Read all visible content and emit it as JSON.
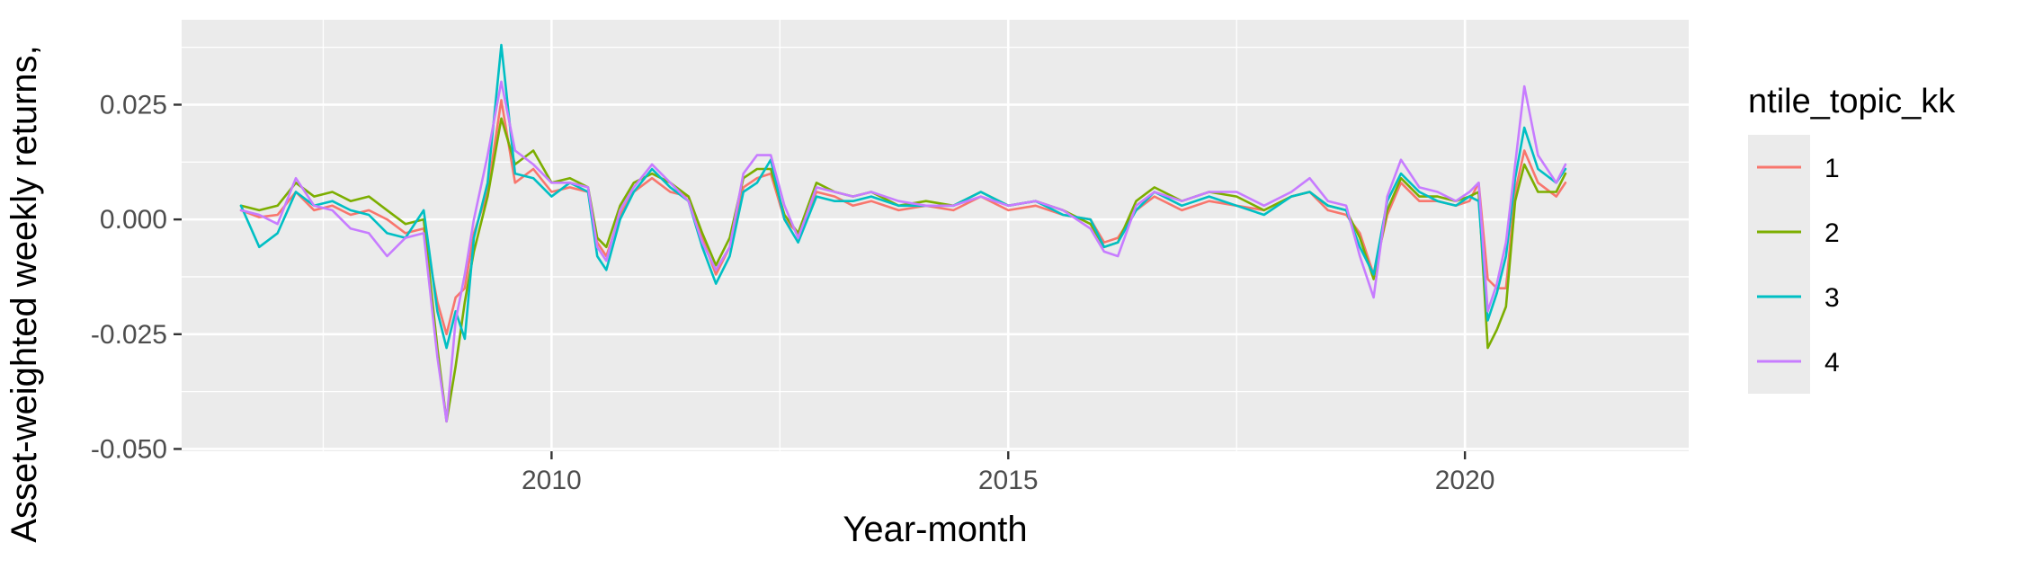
{
  "chart_data": {
    "type": "line",
    "title": "",
    "xlabel": "Year-month",
    "ylabel": "Asset-weighted weekly returns,",
    "xlim": [
      2005.95,
      2022.45
    ],
    "ylim": [
      -0.0505,
      0.0435
    ],
    "x_ticks": [
      2010,
      2015,
      2020
    ],
    "x_tick_labels": [
      "2010",
      "2015",
      "2020"
    ],
    "y_ticks": [
      -0.05,
      -0.025,
      0.0,
      0.025
    ],
    "y_tick_labels": [
      "-0.050",
      "-0.025",
      "0.000",
      "0.025"
    ],
    "grid": true,
    "legend": {
      "title": "ntile_topic_kk",
      "placement": "right"
    },
    "colors": {
      "panel": "#ebebeb",
      "grid": "#ffffff"
    },
    "x": [
      2006.6,
      2006.8,
      2007.0,
      2007.2,
      2007.4,
      2007.6,
      2007.8,
      2008.0,
      2008.2,
      2008.4,
      2008.6,
      2008.75,
      2008.85,
      2008.95,
      2009.05,
      2009.15,
      2009.3,
      2009.45,
      2009.6,
      2009.8,
      2010.0,
      2010.2,
      2010.4,
      2010.5,
      2010.6,
      2010.75,
      2010.9,
      2011.1,
      2011.3,
      2011.5,
      2011.65,
      2011.8,
      2011.95,
      2012.1,
      2012.25,
      2012.4,
      2012.55,
      2012.7,
      2012.9,
      2013.1,
      2013.3,
      2013.5,
      2013.8,
      2014.1,
      2014.4,
      2014.7,
      2015.0,
      2015.3,
      2015.6,
      2015.9,
      2016.05,
      2016.2,
      2016.4,
      2016.6,
      2016.9,
      2017.2,
      2017.5,
      2017.8,
      2018.1,
      2018.3,
      2018.5,
      2018.7,
      2018.85,
      2019.0,
      2019.15,
      2019.3,
      2019.5,
      2019.7,
      2019.9,
      2020.05,
      2020.15,
      2020.25,
      2020.35,
      2020.45,
      2020.55,
      2020.65,
      2020.8,
      2021.0,
      2021.1
    ],
    "series": [
      {
        "name": "1",
        "color": "#F8766D",
        "values": [
          0.002,
          0.0005,
          0.001,
          0.006,
          0.002,
          0.003,
          0.001,
          0.002,
          0.0,
          -0.003,
          -0.002,
          -0.018,
          -0.025,
          -0.017,
          -0.015,
          -0.003,
          0.006,
          0.026,
          0.008,
          0.011,
          0.006,
          0.007,
          0.006,
          -0.005,
          -0.008,
          0.001,
          0.006,
          0.009,
          0.006,
          0.005,
          -0.004,
          -0.012,
          -0.006,
          0.007,
          0.009,
          0.01,
          0.0,
          -0.003,
          0.006,
          0.005,
          0.003,
          0.004,
          0.002,
          0.003,
          0.002,
          0.005,
          0.002,
          0.003,
          0.001,
          0.0,
          -0.005,
          -0.004,
          0.002,
          0.005,
          0.002,
          0.004,
          0.003,
          0.002,
          0.005,
          0.006,
          0.002,
          0.001,
          -0.003,
          -0.012,
          0.001,
          0.008,
          0.004,
          0.004,
          0.003,
          0.004,
          0.008,
          -0.013,
          -0.015,
          -0.015,
          0.006,
          0.015,
          0.008,
          0.005,
          0.008
        ]
      },
      {
        "name": "2",
        "color": "#7CAE00",
        "values": [
          0.003,
          0.002,
          0.003,
          0.008,
          0.005,
          0.006,
          0.004,
          0.005,
          0.002,
          -0.001,
          0.0,
          -0.028,
          -0.044,
          -0.032,
          -0.018,
          -0.007,
          0.005,
          0.022,
          0.012,
          0.015,
          0.008,
          0.009,
          0.007,
          -0.004,
          -0.006,
          0.003,
          0.008,
          0.01,
          0.008,
          0.005,
          -0.003,
          -0.01,
          -0.004,
          0.009,
          0.011,
          0.011,
          0.001,
          -0.003,
          0.008,
          0.006,
          0.005,
          0.006,
          0.003,
          0.004,
          0.003,
          0.006,
          0.003,
          0.004,
          0.002,
          -0.001,
          -0.006,
          -0.005,
          0.004,
          0.007,
          0.004,
          0.006,
          0.005,
          0.002,
          0.005,
          0.006,
          0.003,
          0.002,
          -0.004,
          -0.013,
          0.002,
          0.009,
          0.005,
          0.005,
          0.004,
          0.005,
          0.006,
          -0.028,
          -0.024,
          -0.019,
          0.004,
          0.012,
          0.006,
          0.006,
          0.01
        ]
      },
      {
        "name": "3",
        "color": "#00BFC4",
        "values": [
          0.003,
          -0.006,
          -0.003,
          0.006,
          0.003,
          0.004,
          0.002,
          0.001,
          -0.003,
          -0.004,
          0.002,
          -0.02,
          -0.028,
          -0.02,
          -0.026,
          -0.004,
          0.008,
          0.038,
          0.01,
          0.009,
          0.005,
          0.008,
          0.006,
          -0.008,
          -0.011,
          0.0,
          0.006,
          0.011,
          0.007,
          0.004,
          -0.006,
          -0.014,
          -0.008,
          0.006,
          0.008,
          0.013,
          0.0,
          -0.005,
          0.005,
          0.004,
          0.004,
          0.005,
          0.003,
          0.003,
          0.003,
          0.006,
          0.003,
          0.004,
          0.001,
          0.0,
          -0.006,
          -0.005,
          0.002,
          0.006,
          0.003,
          0.005,
          0.003,
          0.001,
          0.005,
          0.006,
          0.003,
          0.002,
          -0.006,
          -0.012,
          0.004,
          0.01,
          0.006,
          0.004,
          0.003,
          0.005,
          0.004,
          -0.022,
          -0.016,
          -0.008,
          0.009,
          0.02,
          0.011,
          0.008,
          0.011
        ]
      },
      {
        "name": "4",
        "color": "#C77CFF",
        "values": [
          0.002,
          0.001,
          -0.001,
          0.009,
          0.003,
          0.002,
          -0.002,
          -0.003,
          -0.008,
          -0.004,
          -0.003,
          -0.03,
          -0.044,
          -0.022,
          -0.012,
          0.0,
          0.014,
          0.03,
          0.015,
          0.012,
          0.008,
          0.008,
          0.007,
          -0.006,
          -0.009,
          0.002,
          0.007,
          0.012,
          0.008,
          0.004,
          -0.005,
          -0.011,
          -0.006,
          0.01,
          0.014,
          0.014,
          0.003,
          -0.004,
          0.007,
          0.006,
          0.005,
          0.006,
          0.004,
          0.003,
          0.003,
          0.005,
          0.003,
          0.004,
          0.002,
          -0.002,
          -0.007,
          -0.008,
          0.003,
          0.006,
          0.004,
          0.006,
          0.006,
          0.003,
          0.006,
          0.009,
          0.004,
          0.003,
          -0.008,
          -0.017,
          0.005,
          0.013,
          0.007,
          0.006,
          0.004,
          0.006,
          0.008,
          -0.02,
          -0.014,
          -0.005,
          0.012,
          0.029,
          0.014,
          0.008,
          0.012
        ]
      }
    ]
  }
}
